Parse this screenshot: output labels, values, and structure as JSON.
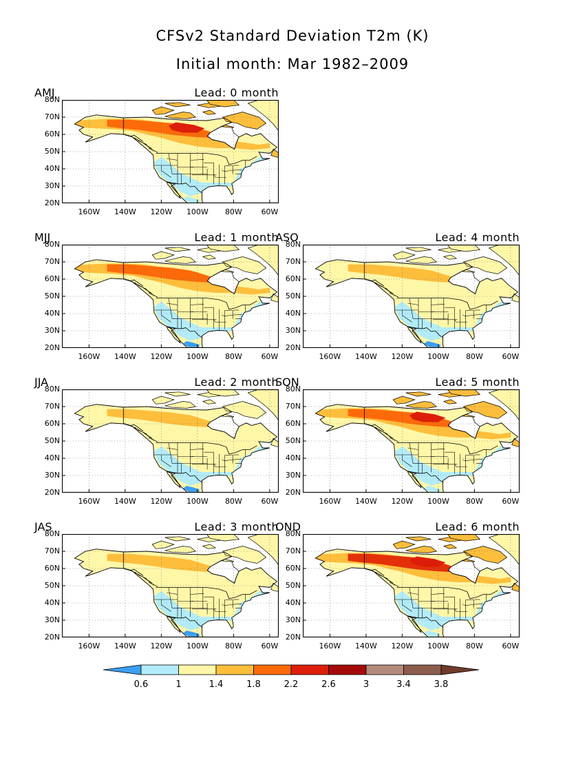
{
  "title": "CFSv2 Standard Deviation T2m (K)",
  "subtitle": "Initial month: Mar 1982–2009",
  "lat_labels": [
    "80N",
    "70N",
    "60N",
    "50N",
    "40N",
    "30N",
    "20N"
  ],
  "lon_labels": [
    "160W",
    "140W",
    "120W",
    "100W",
    "80W",
    "60W"
  ],
  "panels": [
    {
      "season": "AMJ",
      "lead": "Lead: 0 month",
      "intensity": 0.55
    },
    {
      "season": "MJJ",
      "lead": "Lead: 1 month",
      "intensity": 0.45
    },
    {
      "season": "ASO",
      "lead": "Lead: 4 month",
      "intensity": 0.2
    },
    {
      "season": "JJA",
      "lead": "Lead: 2 month",
      "intensity": 0.3
    },
    {
      "season": "SON",
      "lead": "Lead: 5 month",
      "intensity": 0.55
    },
    {
      "season": "JAS",
      "lead": "Lead: 3 month",
      "intensity": 0.2
    },
    {
      "season": "OND",
      "lead": "Lead: 6 month",
      "intensity": 0.8
    }
  ],
  "colorbar": {
    "labels": [
      "0.6",
      "1",
      "1.4",
      "1.8",
      "2.2",
      "2.6",
      "3",
      "3.4",
      "3.8"
    ],
    "colors": [
      "#3c9ff0",
      "#b3ecf8",
      "#fff7a8",
      "#fdbe3c",
      "#fc6a0a",
      "#dc1e0a",
      "#a50a0a",
      "#b38a7c",
      "#8c5c4c",
      "#6e3c2c"
    ]
  }
}
